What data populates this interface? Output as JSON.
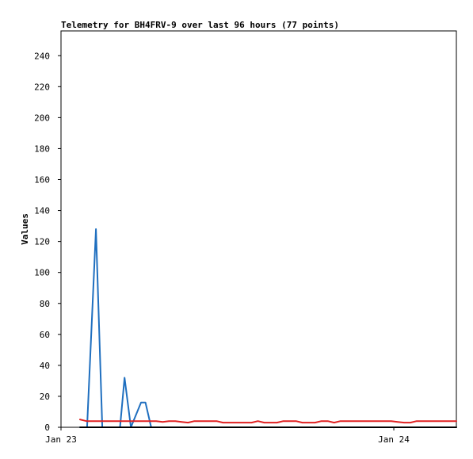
{
  "chart_data": {
    "type": "line",
    "title": "Telemetry for BH4FRV-9 over last 96 hours (77 points)",
    "xlabel": "",
    "ylabel": "Values",
    "xlim": [
      0,
      62.25
    ],
    "ylim": [
      0,
      256
    ],
    "yticks": [
      0,
      20,
      40,
      60,
      80,
      100,
      120,
      140,
      160,
      180,
      200,
      220,
      240
    ],
    "xticks": [
      {
        "label": "Jan 23",
        "x": 0
      },
      {
        "label": "Jan 24",
        "x": 52.4
      }
    ],
    "grid": false,
    "legend": "none",
    "series": [
      {
        "color": "#1f6fbf",
        "points": [
          [
            3,
            0
          ],
          [
            4.1,
            0
          ],
          [
            5.5,
            128
          ],
          [
            6.5,
            0
          ],
          [
            8,
            0
          ],
          [
            9.3,
            0
          ],
          [
            10,
            32
          ],
          [
            11,
            0
          ],
          [
            12,
            10
          ],
          [
            12.6,
            16
          ],
          [
            13.3,
            16
          ],
          [
            14.2,
            0
          ],
          [
            15.5,
            0
          ]
        ]
      },
      {
        "color": "#e02020",
        "points": [
          [
            3,
            5
          ],
          [
            4,
            4
          ],
          [
            6,
            4
          ],
          [
            8,
            4
          ],
          [
            10,
            4
          ],
          [
            13,
            4
          ],
          [
            15,
            4
          ],
          [
            16,
            3.5
          ],
          [
            17,
            4
          ],
          [
            18,
            4
          ],
          [
            19,
            3.5
          ],
          [
            20,
            3
          ],
          [
            21,
            4
          ],
          [
            23,
            4
          ],
          [
            24.5,
            4
          ],
          [
            25.5,
            3
          ],
          [
            28,
            3
          ],
          [
            30,
            3
          ],
          [
            31,
            4
          ],
          [
            32,
            3
          ],
          [
            34,
            3
          ],
          [
            35,
            4
          ],
          [
            37,
            4
          ],
          [
            38,
            3
          ],
          [
            40,
            3
          ],
          [
            41,
            4
          ],
          [
            42,
            4
          ],
          [
            43,
            3
          ],
          [
            44,
            4
          ],
          [
            46,
            4
          ],
          [
            48,
            4
          ],
          [
            50,
            4
          ],
          [
            52,
            4
          ],
          [
            53,
            3.5
          ],
          [
            54,
            3
          ],
          [
            55,
            3
          ],
          [
            56,
            4
          ],
          [
            58,
            4
          ],
          [
            60,
            4
          ],
          [
            61,
            4
          ],
          [
            62.25,
            4
          ]
        ]
      },
      {
        "color": "#000000",
        "points": [
          [
            3,
            0
          ],
          [
            62.25,
            0
          ]
        ]
      }
    ]
  }
}
